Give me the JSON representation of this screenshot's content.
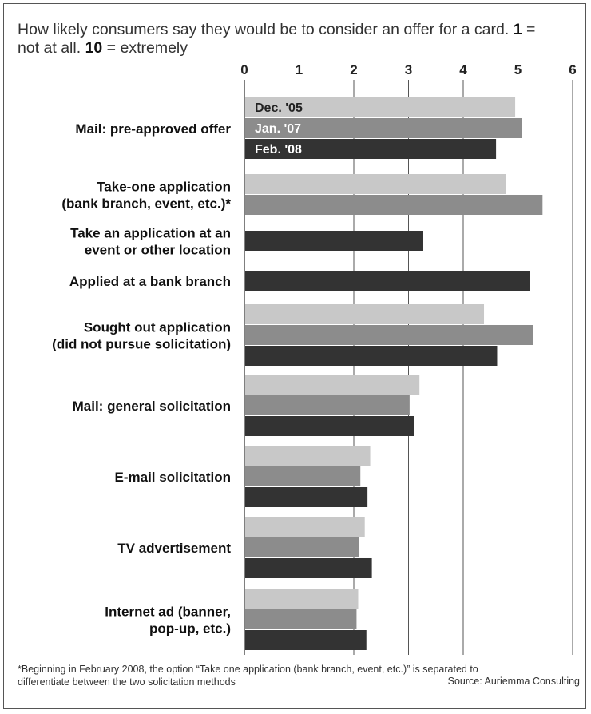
{
  "title": {
    "part1": "How likely consumers say they would be to consider an offer for a card. ",
    "bold1": "1",
    "part2": " = not at all. ",
    "bold2": "10",
    "part3": " = extremely"
  },
  "footnote": "*Beginning in February 2008, the option “Take one application (bank branch, event, etc.)” is separated to differentiate between the two solicitation methods",
  "source": "Source: Auriemma Consulting",
  "colors": {
    "s0": "#c8c8c8",
    "s1": "#8c8c8c",
    "s2": "#333333",
    "grid": "#555555"
  },
  "chart_data": {
    "type": "bar",
    "orientation": "horizontal",
    "xlim": [
      0,
      6
    ],
    "xticks": [
      "0",
      "1",
      "2",
      "3",
      "4",
      "5",
      "6"
    ],
    "series_labels_in_first_group": true,
    "series": [
      {
        "name": "Dec. '05"
      },
      {
        "name": "Jan. '07"
      },
      {
        "name": "Feb. '08"
      }
    ],
    "categories": [
      {
        "label": [
          "Mail: pre-approved offer"
        ],
        "values": [
          4.95,
          5.07,
          4.6
        ]
      },
      {
        "label": [
          "Take-one application",
          "(bank branch, event, etc.)*"
        ],
        "values": [
          4.78,
          5.45,
          null
        ]
      },
      {
        "label": [
          "Take an application at an",
          "event or other location"
        ],
        "values": [
          null,
          null,
          3.27
        ]
      },
      {
        "label": [
          "Applied at a bank branch"
        ],
        "values": [
          null,
          null,
          5.22
        ]
      },
      {
        "label": [
          "Sought out application",
          "(did not pursue solicitation)"
        ],
        "values": [
          4.38,
          5.27,
          4.62
        ]
      },
      {
        "label": [
          "Mail: general solicitation"
        ],
        "values": [
          3.2,
          3.02,
          3.1
        ]
      },
      {
        "label": [
          "E-mail solicitation"
        ],
        "values": [
          2.3,
          2.12,
          2.25
        ]
      },
      {
        "label": [
          "TV advertisement"
        ],
        "values": [
          2.2,
          2.1,
          2.33
        ]
      },
      {
        "label": [
          "Internet ad (banner,",
          "pop-up, etc.)"
        ],
        "values": [
          2.08,
          2.05,
          2.23
        ]
      }
    ]
  }
}
